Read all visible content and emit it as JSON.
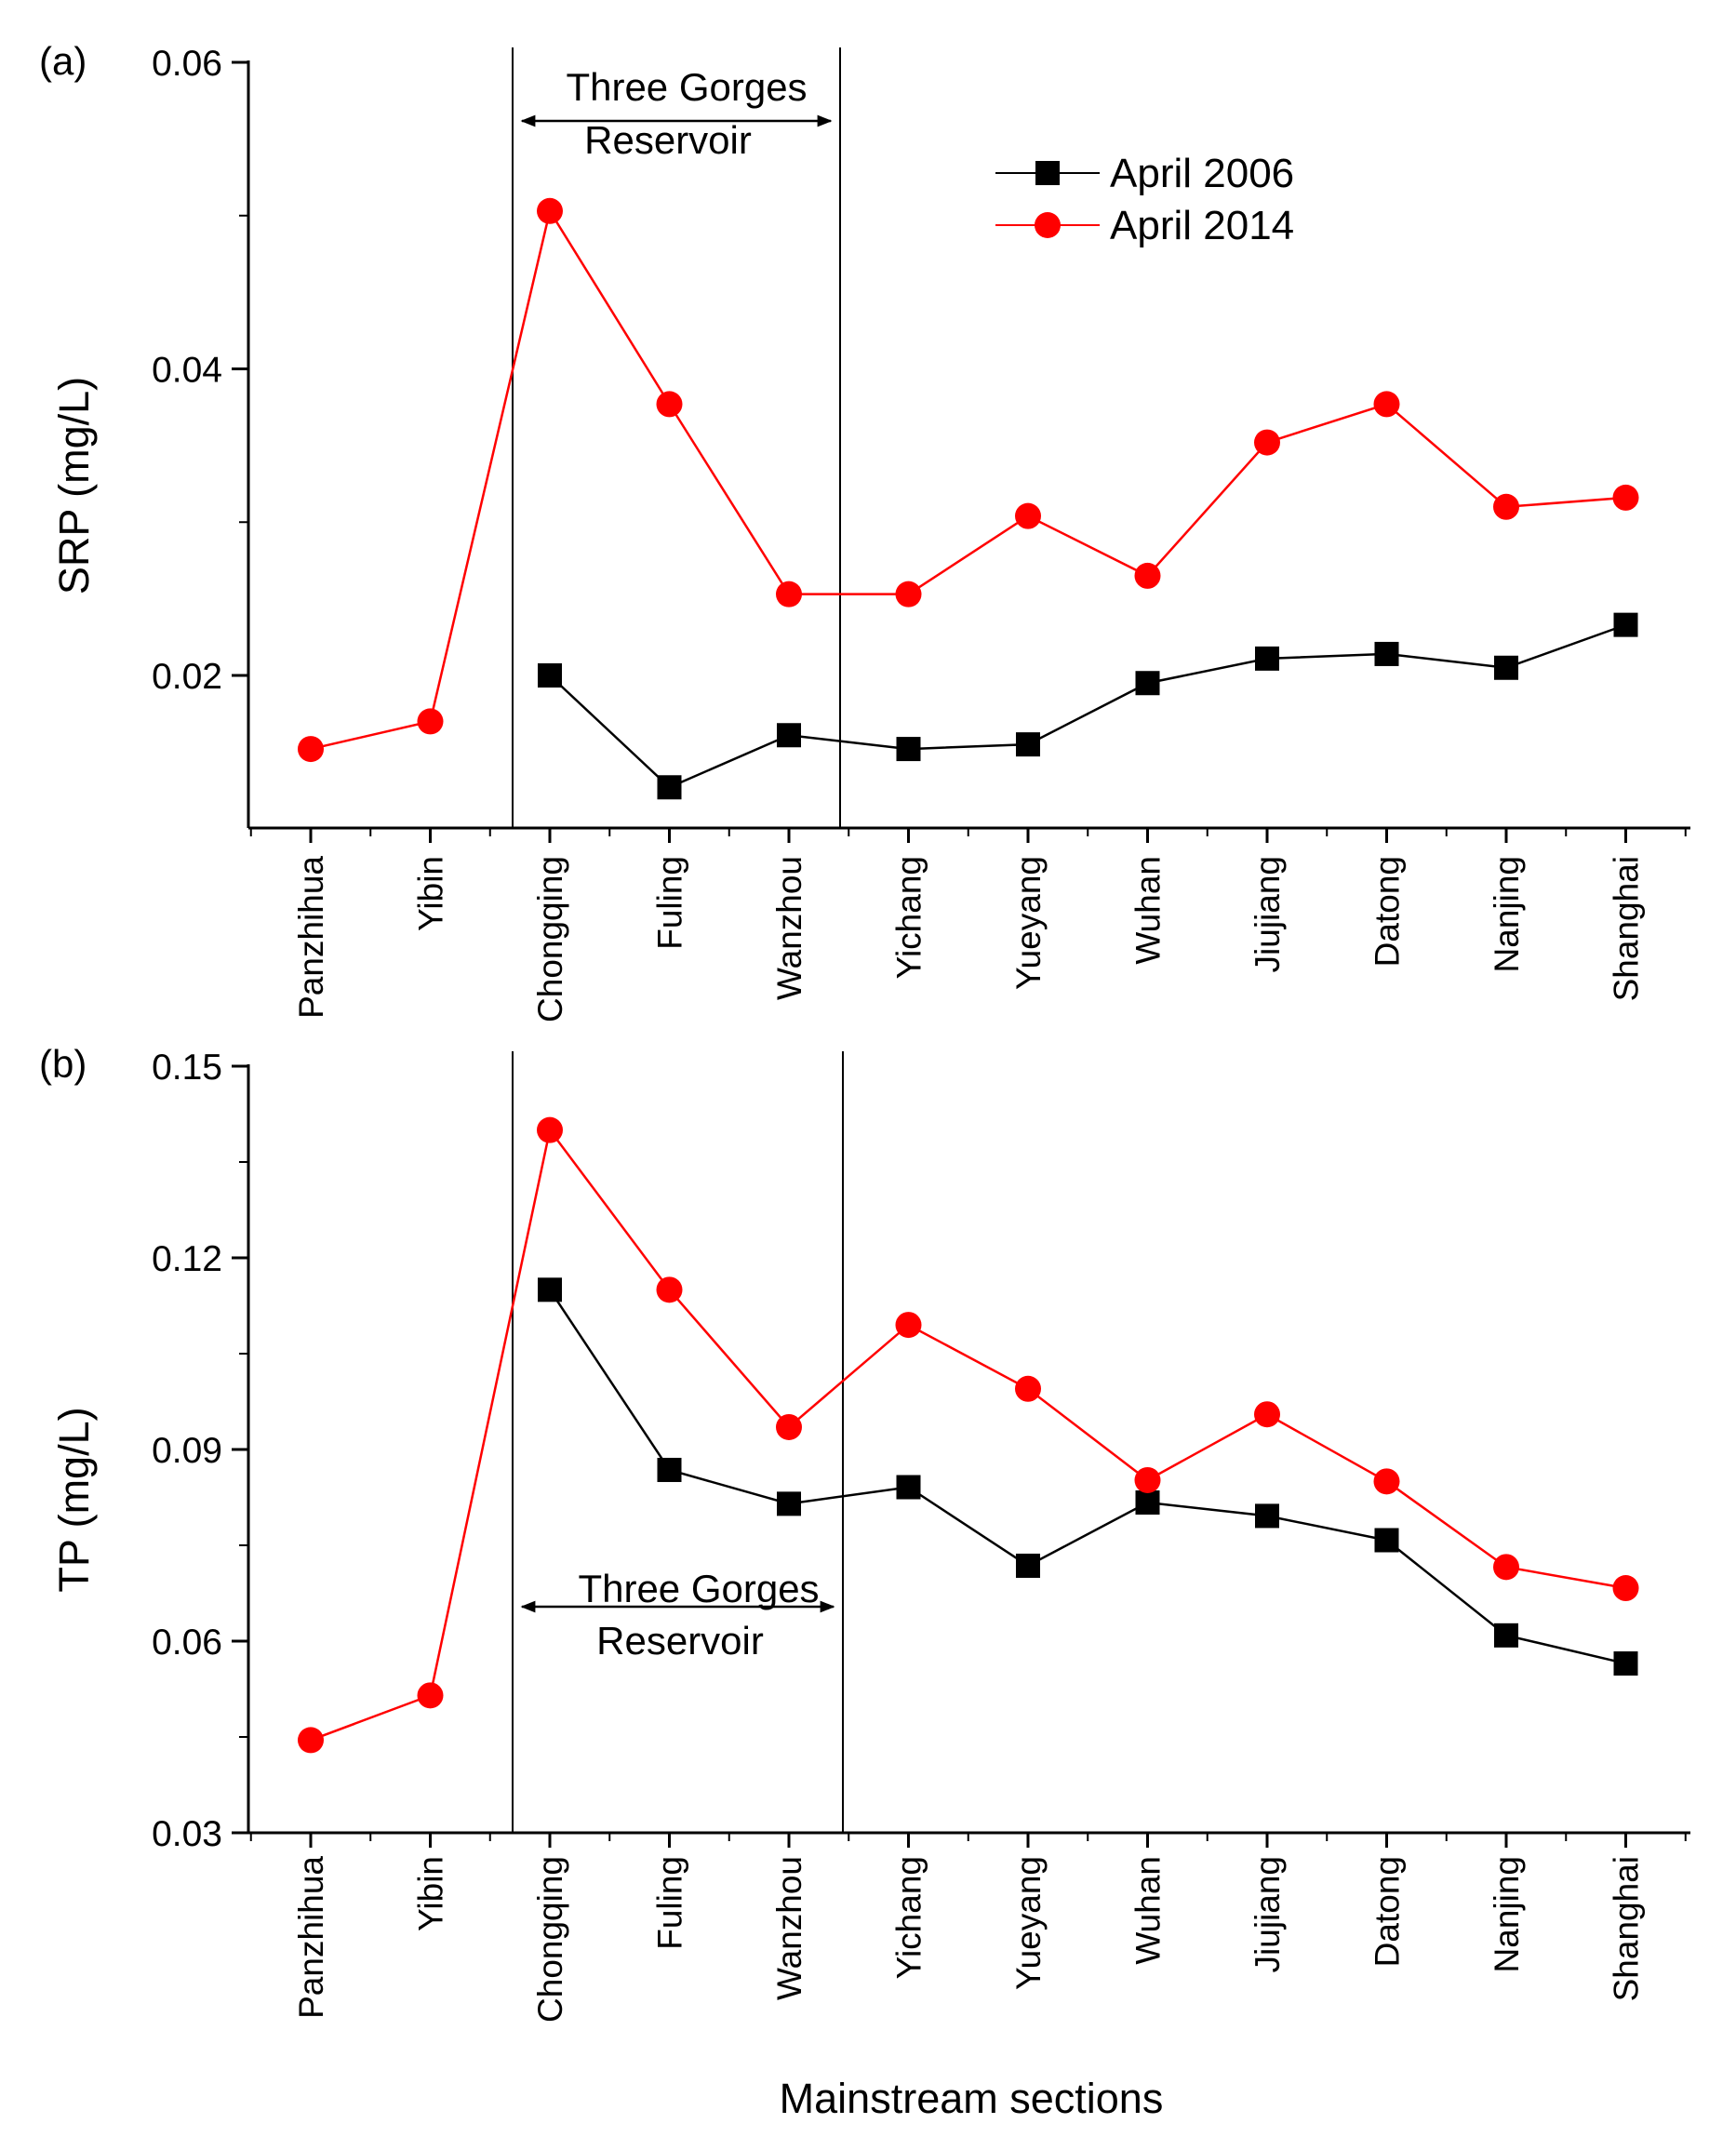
{
  "chart_data": [
    {
      "panel": "(a)",
      "type": "line",
      "categories": [
        "Panzhihua",
        "Yibin",
        "Chongqing",
        "Fuling",
        "Wanzhou",
        "Yichang",
        "Yueyang",
        "Wuhan",
        "Jiujiang",
        "Datong",
        "Nanjing",
        "Shanghai"
      ],
      "series": [
        {
          "name": "April 2006",
          "color": "#000000",
          "marker": "square",
          "values": [
            null,
            null,
            0.02,
            0.0127,
            0.0161,
            0.0152,
            0.0155,
            0.0195,
            0.0211,
            0.0214,
            0.0205,
            0.0233
          ]
        },
        {
          "name": "April 2014",
          "color": "#ff0000",
          "marker": "circle",
          "values": [
            0.0152,
            0.017,
            0.0503,
            0.0377,
            0.0253,
            0.0253,
            0.0304,
            0.0265,
            0.0352,
            0.0377,
            0.031,
            0.0316
          ]
        }
      ],
      "title": "",
      "xlabel": "",
      "ylabel": "SRP (mg/L)",
      "ylim": [
        0.01,
        0.06
      ],
      "yticks": [
        "0.02",
        "0.04",
        "0.06"
      ],
      "annotation": {
        "line1": "Three Gorges",
        "line2": "Reservoir",
        "from_category": "Chongqing",
        "to_category": "Wanzhou"
      },
      "legend": "top-right",
      "grid": false
    },
    {
      "panel": "(b)",
      "type": "line",
      "categories": [
        "Panzhihua",
        "Yibin",
        "Chongqing",
        "Fuling",
        "Wanzhou",
        "Yichang",
        "Yueyang",
        "Wuhan",
        "Jiujiang",
        "Datong",
        "Nanjing",
        "Shanghai"
      ],
      "series": [
        {
          "name": "April 2006",
          "color": "#000000",
          "marker": "square",
          "values": [
            null,
            null,
            0.115,
            0.0868,
            0.0815,
            0.0841,
            0.0718,
            0.0817,
            0.0796,
            0.0758,
            0.0609,
            0.0565
          ]
        },
        {
          "name": "April 2014",
          "color": "#ff0000",
          "marker": "circle",
          "values": [
            0.0445,
            0.0515,
            0.14,
            0.115,
            0.0935,
            0.1095,
            0.0995,
            0.0852,
            0.0955,
            0.085,
            0.0716,
            0.0683
          ]
        }
      ],
      "title": "",
      "xlabel": "Mainstream sections",
      "ylabel": "TP (mg/L)",
      "ylim": [
        0.03,
        0.15
      ],
      "yticks": [
        "0.03",
        "0.06",
        "0.09",
        "0.12",
        "0.15"
      ],
      "annotation": {
        "line1": "Three Gorges",
        "line2": "Reservoir",
        "from_category": "Chongqing",
        "to_category": "Wanzhou"
      },
      "grid": false
    }
  ]
}
